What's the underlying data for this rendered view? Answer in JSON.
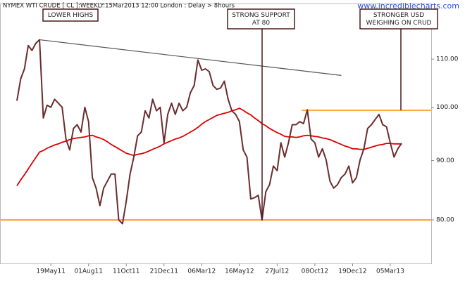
{
  "chart_data": {
    "type": "line",
    "title": "NYMEX WTI CRUDE [ CL ]:WEEKLY:15Mar2013 12:00 London : Delay > 8hours",
    "watermark": "www.incrediblecharts.com",
    "categories": [
      null,
      null,
      null,
      null,
      null,
      null,
      null,
      null,
      null,
      "19May11",
      null,
      null,
      null,
      null,
      null,
      null,
      null,
      null,
      null,
      "01Aug11",
      null,
      null,
      null,
      null,
      null,
      null,
      null,
      null,
      null,
      "11Oct11",
      null,
      null,
      null,
      null,
      null,
      null,
      null,
      null,
      null,
      "21Dec11",
      null,
      null,
      null,
      null,
      null,
      null,
      null,
      null,
      null,
      "06Mar12",
      null,
      null,
      null,
      null,
      null,
      null,
      null,
      null,
      null,
      "16May12",
      null,
      null,
      null,
      null,
      null,
      null,
      null,
      null,
      null,
      "27Jul12",
      null,
      null,
      null,
      null,
      null,
      null,
      null,
      null,
      null,
      "08Oct12",
      null,
      null,
      null,
      null,
      null,
      null,
      null,
      null,
      null,
      "19Dec12",
      null,
      null,
      null,
      null,
      null,
      null,
      null,
      null,
      null,
      "05Mar13",
      null,
      null,
      null
    ],
    "series": [
      {
        "color": "#6b2c2c",
        "values": [
          101.3,
          105.8,
          107.9,
          113,
          111.9,
          113.5,
          114.3,
          97.9,
          100.4,
          100,
          101.6,
          100.8,
          100,
          93.9,
          91.9,
          95.9,
          96.6,
          95.2,
          100,
          97.2,
          87,
          85.2,
          82.3,
          85.2,
          86.4,
          87.6,
          87.6,
          80,
          79.4,
          83,
          87.6,
          90.6,
          94.5,
          95.2,
          99.3,
          97.9,
          101.6,
          99.3,
          100,
          93.2,
          98.6,
          100.8,
          98.6,
          100.8,
          99.3,
          100,
          102.9,
          104.4,
          109.8,
          107.6,
          107.9,
          107.3,
          104.4,
          103.6,
          103.9,
          105.3,
          101.6,
          99.3,
          98.6,
          97.2,
          91.9,
          90.6,
          83.4,
          83.6,
          84,
          80,
          84.6,
          85.8,
          89,
          88.2,
          93.2,
          90.6,
          93.2,
          96.6,
          96.6,
          97.2,
          96.8,
          99.5,
          93.9,
          93.2,
          90.6,
          92.1,
          90.1,
          86.4,
          85.2,
          85.8,
          87,
          87.6,
          89,
          86.1,
          87,
          90.1,
          92.1,
          95.9,
          96.6,
          97.6,
          98.6,
          96.6,
          96.2,
          93.2,
          90.6,
          92.1,
          93.1
        ]
      },
      {
        "color": "#dd0000",
        "values": [
          85.6,
          86.6,
          87.5,
          88.5,
          89.5,
          90.5,
          91.5,
          91.8,
          92.2,
          92.5,
          92.8,
          93,
          93.3,
          93.5,
          93.8,
          94,
          94.1,
          94.2,
          94.3,
          94.5,
          94.6,
          94.3,
          94.1,
          93.8,
          93.4,
          92.9,
          92.5,
          92.1,
          91.7,
          91.3,
          91.1,
          90.9,
          91.1,
          91.2,
          91.4,
          91.7,
          92,
          92.3,
          92.6,
          93,
          93.3,
          93.6,
          93.9,
          94.1,
          94.4,
          94.8,
          95.2,
          95.6,
          96.1,
          96.7,
          97.2,
          97.6,
          98,
          98.4,
          98.6,
          98.8,
          99,
          99.3,
          99.5,
          99.8,
          99.4,
          98.9,
          98.5,
          97.9,
          97.4,
          96.8,
          96.4,
          95.9,
          95.5,
          95.1,
          94.8,
          94.4,
          94.3,
          94.3,
          94.2,
          94.3,
          94.5,
          94.6,
          94.5,
          94.4,
          94.3,
          94.1,
          94,
          93.8,
          93.5,
          93.2,
          92.9,
          92.6,
          92.4,
          92.1,
          92.1,
          92,
          92,
          92.2,
          92.4,
          92.6,
          92.8,
          92.9,
          93.1,
          93.1,
          93,
          93,
          93
        ]
      }
    ],
    "ylim": [
      73.4,
      122.8
    ],
    "log_scale": true,
    "yticks": [
      {
        "value": 80,
        "label": "80.00"
      },
      {
        "value": 90,
        "label": "90.00"
      },
      {
        "value": 100,
        "label": "100.00"
      },
      {
        "value": 110,
        "label": "110.00"
      }
    ],
    "trendlines": [
      {
        "x": [
          6,
          86
        ],
        "y": [
          114.3,
          106.5
        ],
        "color": "#555555"
      }
    ],
    "hlines": [
      {
        "value": 99.4,
        "from": 75.5,
        "color": "#ff8c00"
      },
      {
        "value": 80,
        "color": "#ff8c00"
      }
    ],
    "annotations": [
      {
        "lines": [
          "LOWER HIGHS"
        ]
      },
      {
        "lines": [
          "STRONG SUPPORT",
          "AT 80"
        ]
      },
      {
        "lines": [
          "STRONGER USD",
          "WEIGHING ON CRUD"
        ]
      }
    ]
  }
}
